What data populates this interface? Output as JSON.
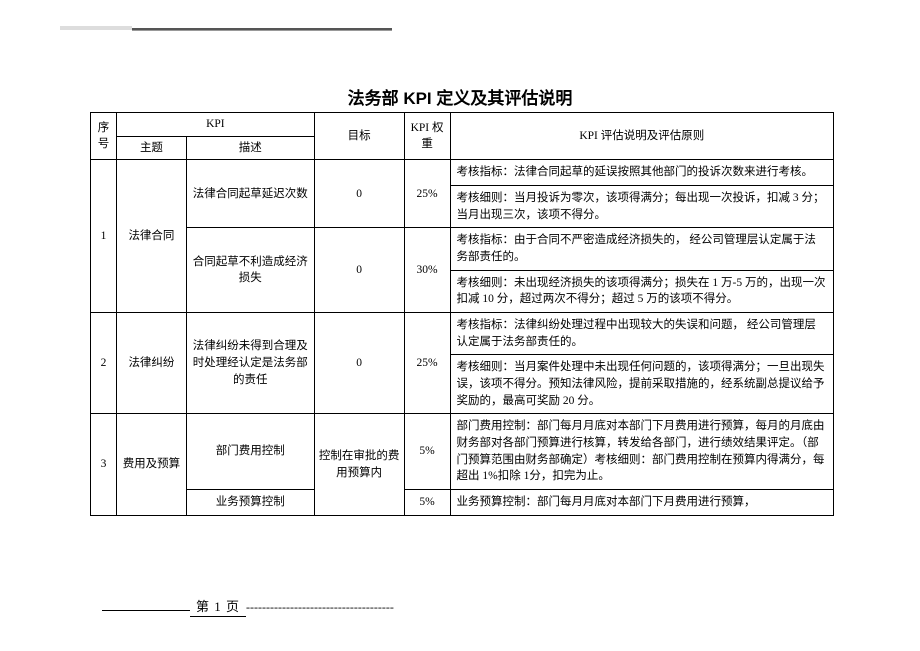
{
  "title": "法务部 KPI 定义及其评估说明",
  "header": {
    "seq": "序号",
    "kpi": "KPI",
    "topic": "主题",
    "desc": "描述",
    "goal": "目标",
    "weight": "KPI 权重",
    "notes": "KPI  评估说明及评估原则"
  },
  "rows": {
    "r1": {
      "seq": "1",
      "topic": "法律合同",
      "desc": "法律合同起草延迟次数",
      "goal": "0",
      "weight": "25%",
      "note1": "考核指标：法律合同起草的延误按照其他部门的投诉次数来进行考核。",
      "note2": "考核细则：当月投诉为零次，该项得满分；每出现一次投诉，扣减 3 分； 当月出现三次，该项不得分。"
    },
    "r2": {
      "desc": "合同起草不利造成经济损失",
      "goal": "0",
      "weight": "30%",
      "note1": "考核指标：由于合同不严密造成经济损失的， 经公司管理层认定属于法务部责任的。",
      "note2": "考核细则：未出现经济损失的该项得满分；损失在 1 万-5 万的，出现一次扣减 10 分，超过两次不得分；超过 5 万的该项不得分。"
    },
    "r3": {
      "seq": "2",
      "topic": "法律纠纷",
      "desc": "法律纠纷未得到合理及时处理经认定是法务部的责任",
      "goal": "0",
      "weight": "25%",
      "note1": "考核指标：法律纠纷处理过程中出现较大的失误和问题， 经公司管理层认定属于法务部责任的。",
      "note2": "考核细则：当月案件处理中未出现任何问题的，该项得满分；一旦出现失误，该项不得分。预知法律风险，提前采取措施的，经系统副总提议给予奖励的，最高可奖励 20 分。"
    },
    "r4": {
      "seq": "3",
      "topic": "费用及预算",
      "desc": "部门费用控制",
      "goal": "控制在审批的费用预算内",
      "weight": "5%",
      "note1": "部门费用控制：部门每月月底对本部门下月费用进行预算，每月的月底由财务部对各部门预算进行核算，转发给各部门，进行绩效结果评定。（部门预算范围由财务部确定）考核细则：部门费用控制在预算内得满分，每超出 1%扣除 1分，扣完为止。"
    },
    "r5": {
      "desc": "业务预算控制",
      "weight": "5%",
      "note1": "业务预算控制：部门每月月底对本部门下月费用进行预算，"
    }
  },
  "footer": {
    "page_label": "第  1  页",
    "dashes": "-------------------------------------"
  }
}
